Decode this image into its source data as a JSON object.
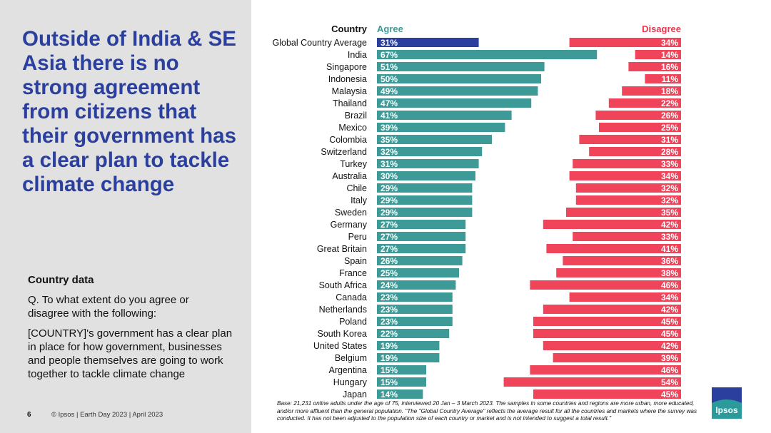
{
  "headline": "Outside of India & SE Asia there is no strong agreement from citizens that their government has a clear plan to tackle climate change",
  "country_data": {
    "title": "Country data",
    "question": "Q. To what extent do you agree or disagree with the following:",
    "statement": "[COUNTRY]'s government has a clear plan in place for how government, businesses and people themselves are going to work together to tackle climate change"
  },
  "footer": {
    "page_number": "6",
    "copyright": "© Ipsos | Earth Day 2023 | April 2023",
    "base_note": "Base: 21,231 online adults under the age of 75, interviewed 20 Jan – 3 March 2023. The samples in some countries and regions are more urban, more educated, and/or more affluent than the general population. \"The \"Global Country Average\" reflects the average result for all the countries and markets where the survey was conducted. It has not been adjusted to the population size of each country or market and is not intended to suggest a total result.\""
  },
  "logo": {
    "text": "Ipsos"
  },
  "colors": {
    "agree": "#3d9a96",
    "agree_highlight": "#2b3f9e",
    "disagree": "#f0445a",
    "agree_header": "#3d9a96",
    "disagree_header": "#e8384f"
  },
  "chart_data": {
    "type": "bar",
    "headers": {
      "country": "Country",
      "agree": "Agree",
      "disagree": "Disagree"
    },
    "categories": [
      "Global Country Average",
      "India",
      "Singapore",
      "Indonesia",
      "Malaysia",
      "Thailand",
      "Brazil",
      "Mexico",
      "Colombia",
      "Switzerland",
      "Turkey",
      "Australia",
      "Chile",
      "Italy",
      "Sweden",
      "Germany",
      "Peru",
      "Great Britain",
      "Spain",
      "France",
      "South Africa",
      "Canada",
      "Netherlands",
      "Poland",
      "South Korea",
      "United States",
      "Belgium",
      "Argentina",
      "Hungary",
      "Japan"
    ],
    "series": [
      {
        "name": "Agree",
        "values": [
          31,
          67,
          51,
          50,
          49,
          47,
          41,
          39,
          35,
          32,
          31,
          30,
          29,
          29,
          29,
          27,
          27,
          27,
          26,
          25,
          24,
          23,
          23,
          23,
          22,
          19,
          19,
          15,
          15,
          14
        ]
      },
      {
        "name": "Disagree",
        "values": [
          34,
          14,
          16,
          11,
          18,
          22,
          26,
          25,
          31,
          28,
          33,
          34,
          32,
          32,
          35,
          42,
          33,
          41,
          36,
          38,
          46,
          34,
          42,
          45,
          45,
          42,
          39,
          46,
          54,
          45
        ]
      }
    ],
    "value_suffix": "%",
    "highlight_index": 0
  }
}
